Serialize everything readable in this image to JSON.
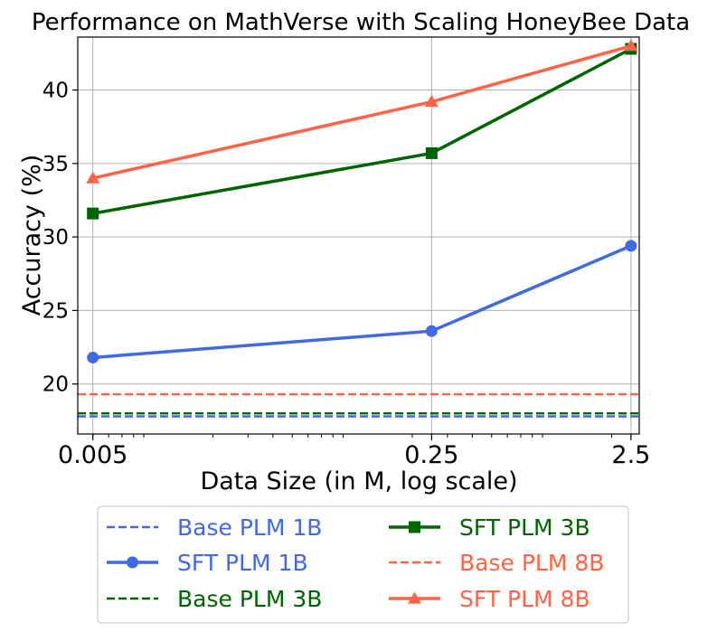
{
  "chart_data": {
    "type": "line",
    "title": "Performance on MathVerse with Scaling HoneyBee Data",
    "xlabel": "Data Size (in M, log scale)",
    "ylabel": "Accuracy (%)",
    "xscale": "log",
    "xlim": [
      0.0042,
      2.75
    ],
    "ylim": [
      16.6,
      43.6
    ],
    "grid": true,
    "x": [
      0.005,
      0.25,
      2.5
    ],
    "xtick_labels": [
      "0.005",
      "0.25",
      "2.5"
    ],
    "yticks": [
      20,
      25,
      30,
      35,
      40
    ],
    "ytick_labels": [
      "20",
      "25",
      "30",
      "35",
      "40"
    ],
    "series": [
      {
        "name": "Base PLM 1B",
        "kind": "baseline",
        "value": 17.8,
        "color": "#4169E1",
        "dash": true
      },
      {
        "name": "SFT PLM 1B",
        "kind": "line",
        "values": [
          21.8,
          23.6,
          29.4
        ],
        "color": "#4169E1",
        "marker": "circle"
      },
      {
        "name": "Base PLM 3B",
        "kind": "baseline",
        "value": 18.0,
        "color": "#006400",
        "dash": true
      },
      {
        "name": "SFT PLM 3B",
        "kind": "line",
        "values": [
          31.6,
          35.7,
          42.8
        ],
        "color": "#006400",
        "marker": "square"
      },
      {
        "name": "Base PLM 8B",
        "kind": "baseline",
        "value": 19.3,
        "color": "#FF6347",
        "dash": true
      },
      {
        "name": "SFT PLM 8B",
        "kind": "line",
        "values": [
          34.0,
          39.2,
          43.0
        ],
        "color": "#FF6347",
        "marker": "triangle"
      }
    ],
    "legend_position": "below-center"
  }
}
